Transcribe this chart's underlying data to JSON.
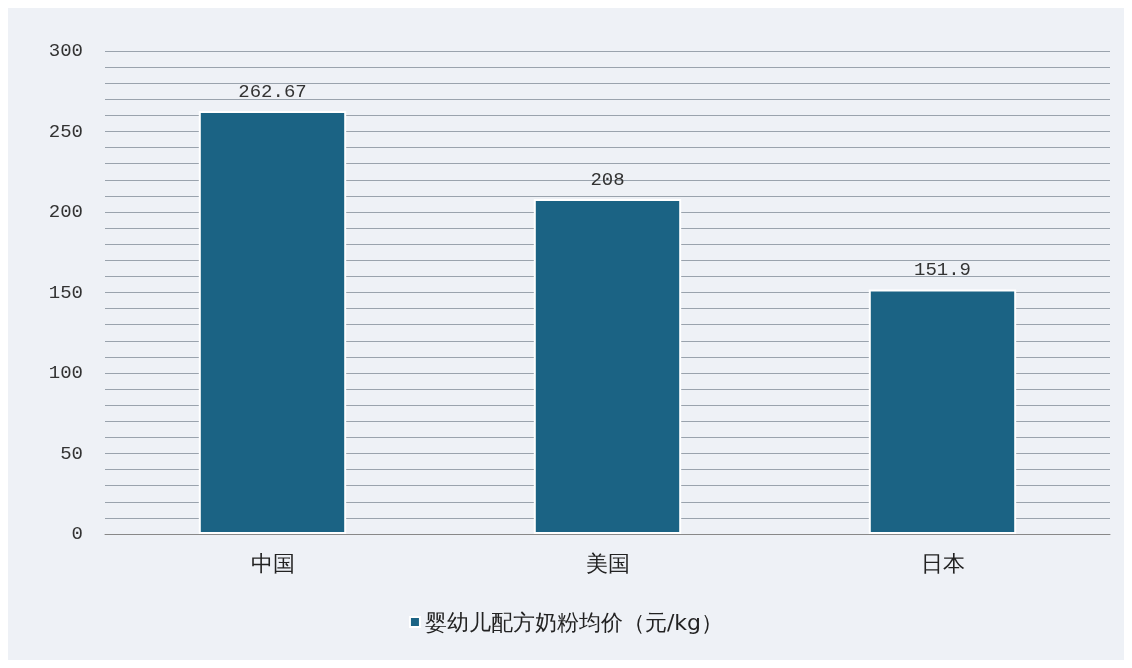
{
  "chart_data": {
    "type": "bar",
    "categories": [
      "中国",
      "美国",
      "日本"
    ],
    "series": [
      {
        "name": "婴幼儿配方奶粉均价（元/kg）",
        "color": "#1b6384",
        "values": [
          262.67,
          208,
          151.9
        ]
      }
    ],
    "ylim": [
      0,
      300
    ],
    "yticks": [
      0,
      {
        "value": 10,
        "label": null
      },
      {
        "value": 20,
        "label": null
      },
      {
        "value": 30,
        "label": null
      },
      {
        "value": 40,
        "label": null
      },
      50,
      {
        "value": 60,
        "label": null
      },
      {
        "value": 70,
        "label": null
      },
      {
        "value": 80,
        "label": null
      },
      {
        "value": 90,
        "label": null
      },
      100,
      {
        "value": 110,
        "label": null
      },
      {
        "value": 120,
        "label": null
      },
      {
        "value": 130,
        "label": null
      },
      {
        "value": 140,
        "label": null
      },
      150,
      {
        "value": 160,
        "label": null
      },
      {
        "value": 170,
        "label": null
      },
      {
        "value": 180,
        "label": null
      },
      {
        "value": 190,
        "label": null
      },
      200,
      {
        "value": 210,
        "label": null
      },
      {
        "value": 220,
        "label": null
      },
      {
        "value": 230,
        "label": null
      },
      {
        "value": 240,
        "label": null
      },
      250,
      {
        "value": 260,
        "label": null
      },
      {
        "value": 270,
        "label": null
      },
      {
        "value": 280,
        "label": null
      },
      {
        "value": 290,
        "label": null
      },
      300
    ],
    "grid": "y",
    "data_labels": true,
    "legend": "bottom"
  }
}
